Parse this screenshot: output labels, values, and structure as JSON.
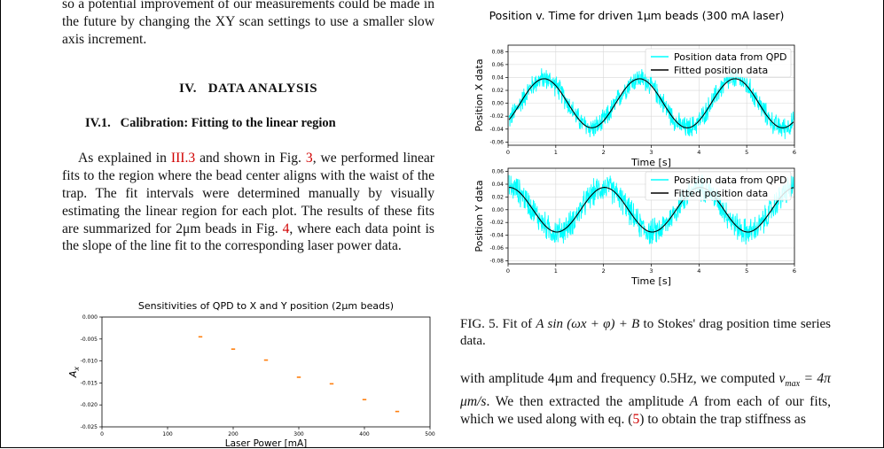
{
  "left_column": {
    "intro_text": "so a potential improvement of our measurements could be made in the future by changing the XY scan settings to use a smaller slow axis increment.",
    "section_title": "IV.   DATA ANALYSIS",
    "subsection_title": "IV.1.   Calibration: Fitting to the linear region",
    "para_part1": "As explained in ",
    "para_ref1": "III.3",
    "para_part2": " and shown in Fig. ",
    "para_ref2": "3",
    "para_part3": ", we performed linear fits to the region where the bead center aligns with the waist of the trap. The fit intervals were determined manually by visually estimating the linear region for each plot.  The results of these fits are summarized for 2μm beads in Fig. ",
    "para_ref3": "4",
    "para_part4": ", where each data point is the slope of the line fit to the corresponding laser power data."
  },
  "right_column": {
    "caption_prefix": "FIG. 5.  Fit of ",
    "caption_formula": "A sin (ωx + φ) + B",
    "caption_suffix": " to Stokes' drag position time series data.",
    "text_part1": "with amplitude 4μm and frequency 0.5Hz, we computed ",
    "text_formula": "v",
    "text_formula_sub": "max",
    "text_formula_rest": " = 4π μm/s",
    "text_part2": ". We then extracted the amplitude ",
    "text_var": "A",
    "text_part3": " from each of our fits, which we used along with eq. (",
    "text_ref": "5",
    "text_part4": ") to obtain the trap stiffness as"
  },
  "colors": {
    "reference": "#d00000",
    "raw_data": "#00ffff",
    "fit": "#000000",
    "marker": "#ff7f0e"
  },
  "chart_data": [
    {
      "type": "scatter",
      "title": "Sensitivities of QPD to X and Y position (2μm beads)",
      "xlabel": "Laser Power [mA]",
      "ylabel": "A_x",
      "xlim": [
        0,
        500
      ],
      "ylim": [
        -0.025,
        0.0
      ],
      "xticks": [
        "0",
        "100",
        "200",
        "300",
        "400",
        "500"
      ],
      "yticks": [
        "0.000",
        "-0.005",
        "-0.010",
        "-0.015",
        "-0.020",
        "-0.025"
      ],
      "x": [
        150,
        200,
        250,
        300,
        350,
        400,
        450
      ],
      "values": [
        -0.0045,
        -0.0073,
        -0.0098,
        -0.0137,
        -0.0152,
        -0.0188,
        -0.0215
      ],
      "grid": false
    },
    {
      "type": "line",
      "suptitle": "Position v. Time for driven 1μm beads (300 mA laser)",
      "xlabel": "Time [s]",
      "ylabel": "Position X data",
      "xlim": [
        0,
        6
      ],
      "ylim": [
        -0.065,
        0.09
      ],
      "xticks": [
        "0",
        "1",
        "2",
        "3",
        "4",
        "5",
        "6"
      ],
      "yticks": [
        "0.08",
        "0.06",
        "0.04",
        "0.02",
        "0.00",
        "-0.02",
        "-0.04",
        "-0.06"
      ],
      "legend": "top-right",
      "grid": true,
      "series": [
        {
          "name": "Position data from QPD",
          "style": "noisy-sine",
          "noise_amplitude": 0.02
        },
        {
          "name": "Fitted position data",
          "style": "sine"
        }
      ],
      "fit": {
        "A": 0.038,
        "omega": 3.1416,
        "phi": -0.8,
        "B": 0.0
      }
    },
    {
      "type": "line",
      "xlabel": "Time [s]",
      "ylabel": "Position Y data",
      "xlim": [
        0,
        6
      ],
      "ylim": [
        -0.085,
        0.065
      ],
      "xticks": [
        "0",
        "1",
        "2",
        "3",
        "4",
        "5",
        "6"
      ],
      "yticks": [
        "0.06",
        "0.04",
        "0.02",
        "0.00",
        "-0.02",
        "-0.04",
        "-0.06",
        "-0.08"
      ],
      "legend": "top-right",
      "grid": true,
      "series": [
        {
          "name": "Position data from QPD",
          "style": "noisy-sine",
          "noise_amplitude": 0.025
        },
        {
          "name": "Fitted position data",
          "style": "sine"
        }
      ],
      "fit": {
        "A": 0.035,
        "omega": 3.1416,
        "phi": 1.5,
        "B": 0.0
      }
    }
  ]
}
